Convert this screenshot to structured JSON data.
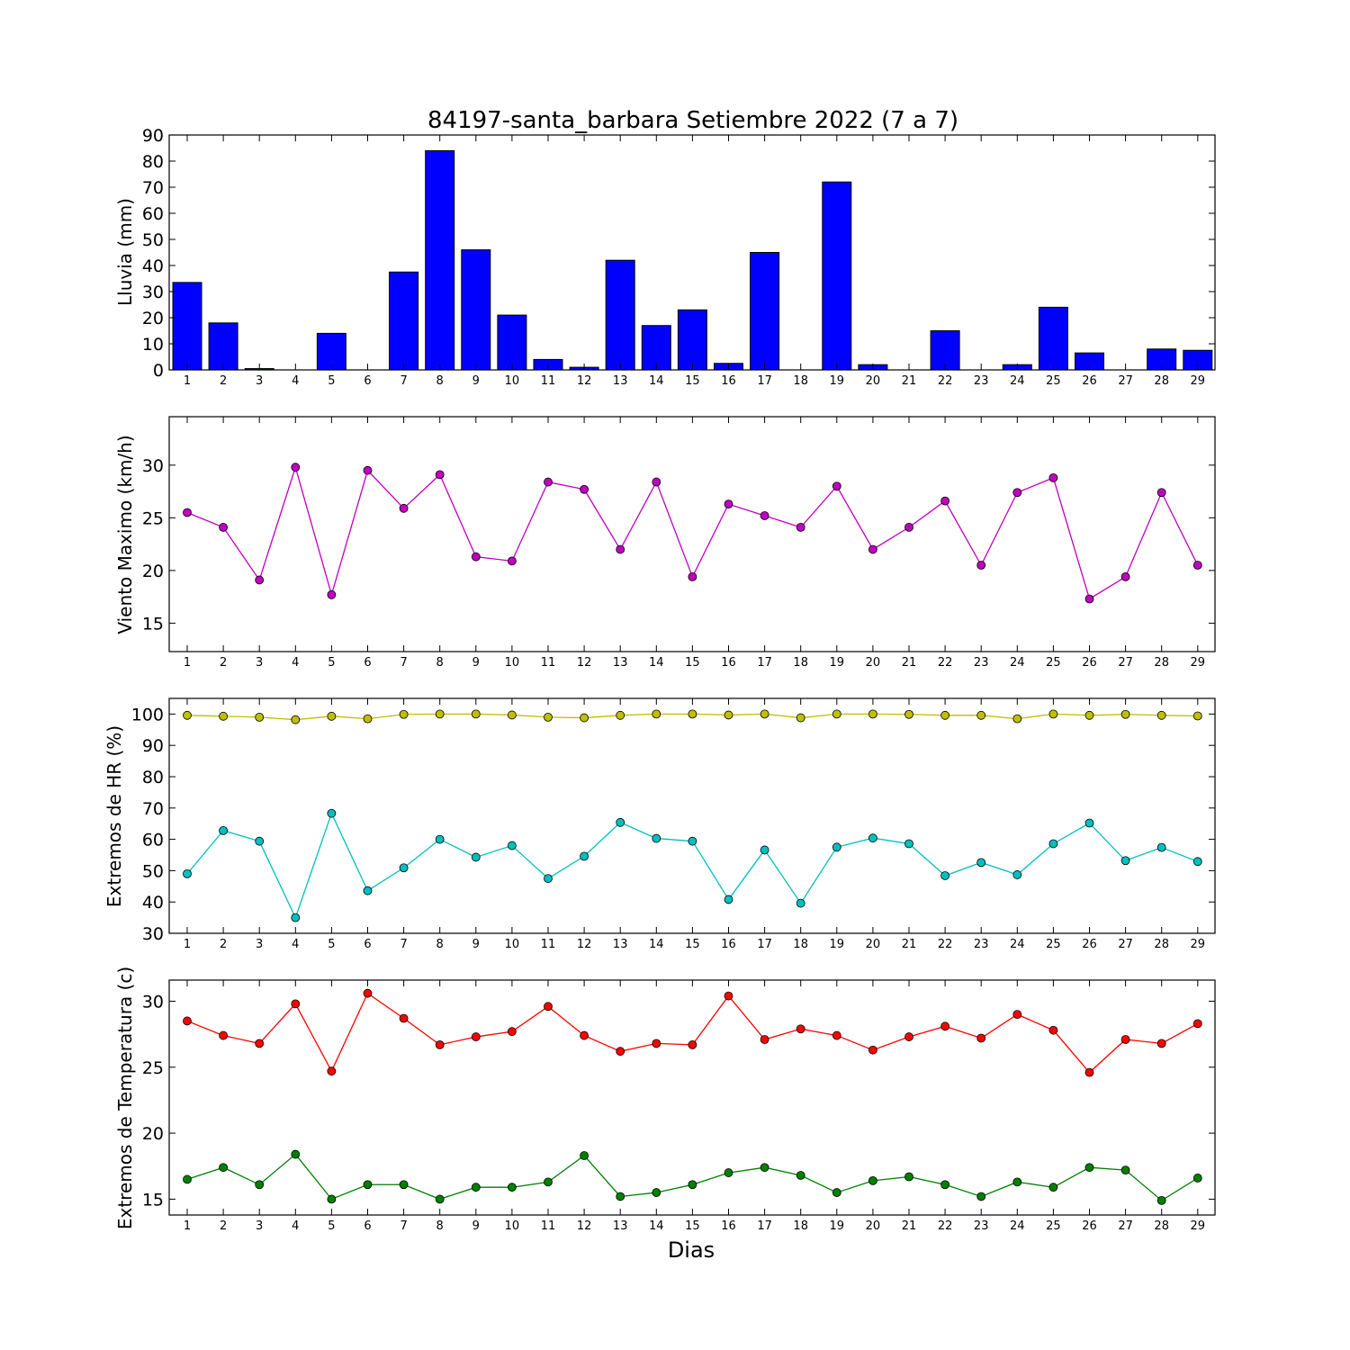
{
  "chart_data": [
    {
      "type": "bar",
      "title": "84197-santa_barbara Setiembre 2022  (7 a 7)",
      "ylabel": "Lluvia (mm)",
      "xlabel": "",
      "categories": [
        1,
        2,
        3,
        4,
        5,
        6,
        7,
        8,
        9,
        10,
        11,
        12,
        13,
        14,
        15,
        16,
        17,
        18,
        19,
        20,
        21,
        22,
        23,
        24,
        25,
        26,
        27,
        28,
        29
      ],
      "series": [
        {
          "color": "#0000ff",
          "values": [
            33.5,
            18,
            0.5,
            0,
            14,
            0,
            37.5,
            84,
            46,
            21,
            4,
            1,
            42,
            17,
            23,
            2.5,
            45,
            0,
            72,
            2,
            0,
            15,
            0,
            2,
            24,
            6.5,
            0,
            8,
            7.5
          ]
        }
      ],
      "ylim": [
        0,
        90
      ],
      "yticks": [
        0,
        10,
        20,
        30,
        40,
        50,
        60,
        70,
        80,
        90
      ]
    },
    {
      "type": "line",
      "title": "",
      "ylabel": "Viento Maximo (km/h)",
      "xlabel": "",
      "categories": [
        1,
        2,
        3,
        4,
        5,
        6,
        7,
        8,
        9,
        10,
        11,
        12,
        13,
        14,
        15,
        16,
        17,
        18,
        19,
        20,
        21,
        22,
        23,
        24,
        25,
        26,
        27,
        28,
        29
      ],
      "series": [
        {
          "color": "#bf00bf",
          "values": [
            25.5,
            24.1,
            19.1,
            29.8,
            17.7,
            29.5,
            25.9,
            29.1,
            21.3,
            20.9,
            28.4,
            27.7,
            22,
            28.4,
            19.4,
            26.3,
            25.2,
            24.1,
            28,
            22,
            24.1,
            26.6,
            20.5,
            27.4,
            28.8,
            17.3,
            19.4,
            27.4,
            20.5
          ]
        }
      ],
      "ylim": [
        12.3,
        34.6
      ],
      "yticks": [
        15,
        20,
        25,
        30
      ]
    },
    {
      "type": "line",
      "title": "",
      "ylabel": "Extremos de HR (%)",
      "xlabel": "",
      "categories": [
        1,
        2,
        3,
        4,
        5,
        6,
        7,
        8,
        9,
        10,
        11,
        12,
        13,
        14,
        15,
        16,
        17,
        18,
        19,
        20,
        21,
        22,
        23,
        24,
        25,
        26,
        27,
        28,
        29
      ],
      "series": [
        {
          "color": "#bfbf00",
          "values": [
            99.6,
            99.3,
            99,
            98.2,
            99.3,
            98.5,
            99.9,
            100,
            100,
            99.7,
            99,
            98.8,
            99.6,
            100,
            100,
            99.7,
            100,
            98.8,
            100,
            100,
            99.9,
            99.6,
            99.6,
            98.5,
            100,
            99.6,
            99.9,
            99.6,
            99.4
          ]
        },
        {
          "color": "#00bfbf",
          "values": [
            49,
            62.8,
            59.4,
            35,
            68.3,
            43.6,
            50.9,
            60,
            54.3,
            58,
            47.5,
            54.6,
            65.4,
            60.3,
            59.4,
            40.8,
            56.6,
            39.6,
            57.5,
            60.4,
            58.6,
            48.4,
            52.6,
            48.7,
            58.6,
            65.2,
            53.2,
            57.4,
            52.9
          ]
        }
      ],
      "ylim": [
        30,
        105
      ],
      "yticks": [
        30,
        40,
        50,
        60,
        70,
        80,
        90,
        100
      ]
    },
    {
      "type": "line",
      "title": "",
      "ylabel": "Extremos de Temperatura (c)",
      "xlabel": "Dias",
      "categories": [
        1,
        2,
        3,
        4,
        5,
        6,
        7,
        8,
        9,
        10,
        11,
        12,
        13,
        14,
        15,
        16,
        17,
        18,
        19,
        20,
        21,
        22,
        23,
        24,
        25,
        26,
        27,
        28,
        29
      ],
      "series": [
        {
          "color": "#ff0000",
          "values": [
            28.5,
            27.4,
            26.8,
            29.8,
            24.7,
            30.6,
            28.7,
            26.7,
            27.3,
            27.7,
            29.6,
            27.4,
            26.2,
            26.8,
            26.7,
            30.4,
            27.1,
            27.9,
            27.4,
            26.3,
            27.3,
            28.1,
            27.2,
            29,
            27.8,
            24.6,
            27.1,
            26.8,
            28.3
          ]
        },
        {
          "color": "#008000",
          "values": [
            16.5,
            17.4,
            16.1,
            18.4,
            15,
            16.1,
            16.1,
            15,
            15.9,
            15.9,
            16.3,
            18.3,
            15.2,
            15.5,
            16.1,
            17,
            17.4,
            16.8,
            15.5,
            16.4,
            16.7,
            16.1,
            15.2,
            16.3,
            15.9,
            17.4,
            17.2,
            14.9,
            16.6
          ]
        }
      ],
      "ylim": [
        13.8,
        31.6
      ],
      "yticks": [
        15,
        20,
        25,
        30
      ]
    }
  ]
}
